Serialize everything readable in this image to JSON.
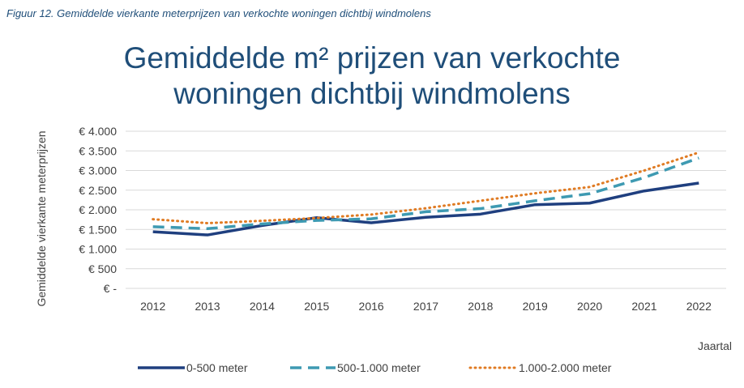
{
  "figure_caption": "Figuur 12. Gemiddelde vierkante meterprijzen van verkochte woningen dichtbij windmolens",
  "chart_data": {
    "type": "line",
    "title_line1": "Gemiddelde m² prijzen van verkochte",
    "title_line2": "woningen dichtbij windmolens",
    "xlabel": "Jaartal",
    "ylabel": "Gemiddelde vierkante meterprijzen",
    "x": [
      "2012",
      "2013",
      "2014",
      "2015",
      "2016",
      "2017",
      "2018",
      "2019",
      "2020",
      "2021",
      "2022"
    ],
    "ylim": [
      0,
      4000
    ],
    "y_ticks": [
      0,
      500,
      1000,
      1500,
      2000,
      2500,
      3000,
      3500,
      4000
    ],
    "y_tick_labels": [
      "€ -",
      "€ 500",
      "€ 1.000",
      "€ 1.500",
      "€ 2.000",
      "€ 2.500",
      "€ 3.000",
      "€ 3.500",
      "€ 4.000"
    ],
    "grid": true,
    "legend_position": "bottom",
    "series": [
      {
        "name": "0-500 meter",
        "color": "#1f3f7f",
        "style": "solid",
        "values": [
          1440,
          1360,
          1600,
          1800,
          1670,
          1810,
          1890,
          2130,
          2170,
          2480,
          2680
        ]
      },
      {
        "name": "500-1.000 meter",
        "color": "#3e9ab2",
        "style": "dashed",
        "values": [
          1570,
          1520,
          1640,
          1730,
          1770,
          1950,
          2030,
          2230,
          2410,
          2820,
          3320
        ]
      },
      {
        "name": "1.000-2.000 meter",
        "color": "#e07b23",
        "style": "dotted",
        "values": [
          1760,
          1660,
          1720,
          1790,
          1880,
          2040,
          2230,
          2420,
          2580,
          3000,
          3460
        ]
      }
    ]
  }
}
